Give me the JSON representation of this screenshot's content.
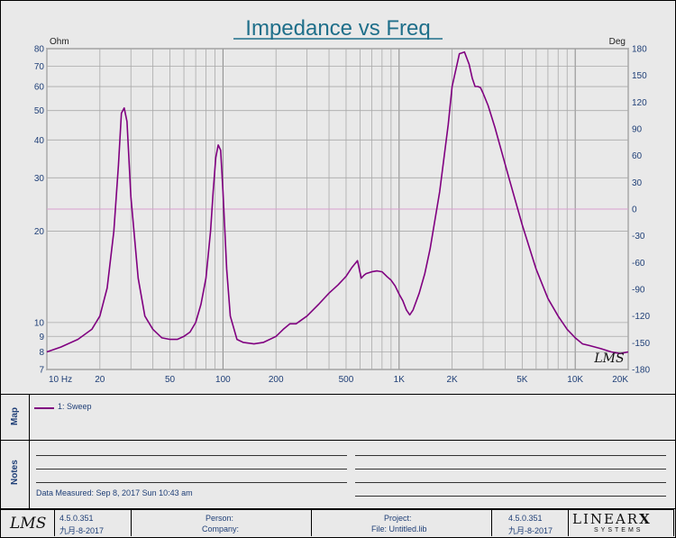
{
  "chart_data": {
    "type": "line",
    "title": "Impedance vs Freq",
    "xscale": "log",
    "xlim": [
      10,
      20000
    ],
    "ylim_left": [
      7,
      80
    ],
    "yscale_left": "log",
    "ylim_right": [
      -180,
      180
    ],
    "left_unit": "Ohm",
    "right_unit": "Deg",
    "x_ticks": [
      {
        "v": 10,
        "label": "10  Hz"
      },
      {
        "v": 20,
        "label": "20"
      },
      {
        "v": 50,
        "label": "50"
      },
      {
        "v": 100,
        "label": "100"
      },
      {
        "v": 200,
        "label": "200"
      },
      {
        "v": 500,
        "label": "500"
      },
      {
        "v": 1000,
        "label": "1K"
      },
      {
        "v": 2000,
        "label": "2K"
      },
      {
        "v": 5000,
        "label": "5K"
      },
      {
        "v": 10000,
        "label": "10K"
      },
      {
        "v": 20000,
        "label": "20K"
      }
    ],
    "y_ticks_left": [
      {
        "v": 80,
        "label": "80"
      },
      {
        "v": 70,
        "label": "70"
      },
      {
        "v": 60,
        "label": "60"
      },
      {
        "v": 50,
        "label": "50"
      },
      {
        "v": 40,
        "label": "40"
      },
      {
        "v": 30,
        "label": "30"
      },
      {
        "v": 20,
        "label": "20"
      },
      {
        "v": 10,
        "label": "10"
      },
      {
        "v": 9,
        "label": "9"
      },
      {
        "v": 8,
        "label": "8"
      },
      {
        "v": 7,
        "label": "7"
      }
    ],
    "y_ticks_right": [
      {
        "v": 180,
        "label": "180"
      },
      {
        "v": 150,
        "label": "150"
      },
      {
        "v": 120,
        "label": "120"
      },
      {
        "v": 90,
        "label": "90"
      },
      {
        "v": 60,
        "label": "60"
      },
      {
        "v": 30,
        "label": "30"
      },
      {
        "v": 0,
        "label": "0"
      },
      {
        "v": -30,
        "label": "-30"
      },
      {
        "v": -60,
        "label": "-60"
      },
      {
        "v": -90,
        "label": "-90"
      },
      {
        "v": -120,
        "label": "-120"
      },
      {
        "v": -150,
        "label": "-150"
      },
      {
        "v": -180,
        "label": "-180"
      }
    ],
    "zero_phase_line": 0,
    "series": [
      {
        "name": "1: Sweep",
        "color": "#800080",
        "x": [
          10,
          12,
          15,
          18,
          20,
          22,
          24,
          25.5,
          26.5,
          27.5,
          28.5,
          30,
          33,
          36,
          40,
          45,
          50,
          55,
          60,
          65,
          70,
          75,
          80,
          85,
          88,
          91,
          94,
          97,
          100,
          105,
          110,
          120,
          130,
          150,
          170,
          200,
          220,
          240,
          260,
          300,
          350,
          400,
          450,
          500,
          540,
          580,
          610,
          630,
          650,
          700,
          750,
          800,
          850,
          900,
          950,
          1000,
          1050,
          1100,
          1150,
          1200,
          1300,
          1400,
          1500,
          1700,
          1900,
          2000,
          2200,
          2350,
          2500,
          2600,
          2700,
          2800,
          2900,
          3000,
          3200,
          3500,
          3800,
          4200,
          5000,
          6000,
          7000,
          8000,
          9000,
          10000,
          11000,
          12000,
          14000,
          16000,
          18000,
          20000
        ],
        "y": [
          8.0,
          8.3,
          8.8,
          9.5,
          10.5,
          13,
          20,
          33,
          49,
          51,
          46,
          26,
          14,
          10.5,
          9.5,
          8.9,
          8.8,
          8.8,
          9.0,
          9.3,
          10.0,
          11.5,
          14,
          20,
          27,
          35,
          38.5,
          37,
          27,
          15,
          10.5,
          8.8,
          8.6,
          8.5,
          8.6,
          9.0,
          9.5,
          9.9,
          9.9,
          10.5,
          11.5,
          12.5,
          13.3,
          14.2,
          15.2,
          16.0,
          14.0,
          14.3,
          14.5,
          14.7,
          14.8,
          14.7,
          14.2,
          13.8,
          13.2,
          12.4,
          11.8,
          11.0,
          10.6,
          11.0,
          12.5,
          14.5,
          17.5,
          27,
          45,
          60,
          77,
          78,
          71,
          64,
          60,
          60,
          59.5,
          57,
          52,
          44,
          37,
          30,
          21,
          15,
          12,
          10.5,
          9.5,
          8.9,
          8.5,
          8.4,
          8.2,
          8.0,
          7.9,
          8.0
        ]
      }
    ]
  },
  "legend": {
    "label": "Map",
    "entry": "1: Sweep"
  },
  "notes": {
    "label": "Notes",
    "measured": "Data Measured: Sep 8, 2017 Sun 10:43 am"
  },
  "footer": {
    "logo": "LMS",
    "version_left": "4.5.0.351",
    "date_left": "九月-8-2017",
    "person_label": "Person:",
    "company_label": "Company:",
    "project_label": "Project:",
    "file_label": "File: Untitled.lib",
    "version_right": "4.5.0.351",
    "date_right": "九月-8-2017",
    "brand": "LINEAR",
    "brand_x": "X",
    "brand_sub": "SYSTEMS"
  },
  "watermark": "LMS"
}
